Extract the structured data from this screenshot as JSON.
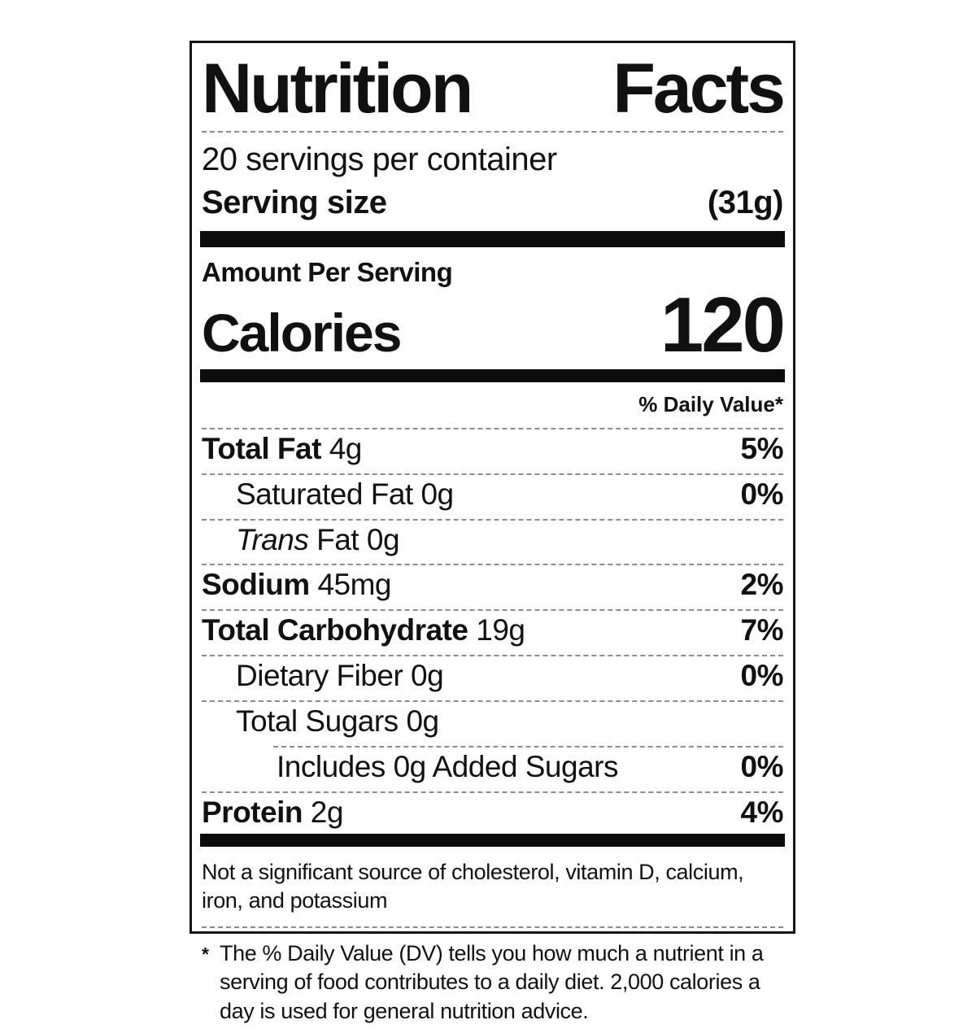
{
  "label": {
    "title": "Nutrition Facts",
    "servings_per_container": "20 servings per container",
    "serving_size": {
      "label": "Serving size",
      "value": "(31g)"
    },
    "amount_per_serving": "Amount Per Serving",
    "calories": {
      "label": "Calories",
      "value": "120"
    },
    "daily_value_header": "% Daily Value*",
    "rows": [
      {
        "bold": "Total Fat",
        "italic": "",
        "regular": " 4g",
        "dv": "5%"
      },
      {
        "bold": "",
        "italic": "",
        "regular": "Saturated Fat 0g",
        "dv": "0%"
      },
      {
        "bold": "",
        "italic": "Trans",
        "regular": " Fat 0g",
        "dv": ""
      },
      {
        "bold": "Sodium",
        "italic": "",
        "regular": " 45mg",
        "dv": "2%"
      },
      {
        "bold": "Total Carbohydrate",
        "italic": "",
        "regular": " 19g",
        "dv": "7%"
      },
      {
        "bold": "",
        "italic": "",
        "regular": "Dietary Fiber 0g",
        "dv": "0%"
      },
      {
        "bold": "",
        "italic": "",
        "regular": "Total Sugars 0g",
        "dv": ""
      },
      {
        "bold": "",
        "italic": "",
        "regular": "Includes 0g Added Sugars",
        "dv": "0%"
      },
      {
        "bold": "Protein",
        "italic": "",
        "regular": " 2g",
        "dv": "4%"
      }
    ],
    "disclaimer": "Not a significant source of cholesterol, vitamin D, calcium, iron, and potassium",
    "footnote_marker": "*",
    "footnote": "The % Daily Value (DV) tells you how much a nutrient in a serving of food contributes to a daily diet. 2,000 calories a day is used for general nutrition advice."
  },
  "colors": {
    "ink": "#111111",
    "background": "#ffffff",
    "bar": "#0c0c0c"
  }
}
